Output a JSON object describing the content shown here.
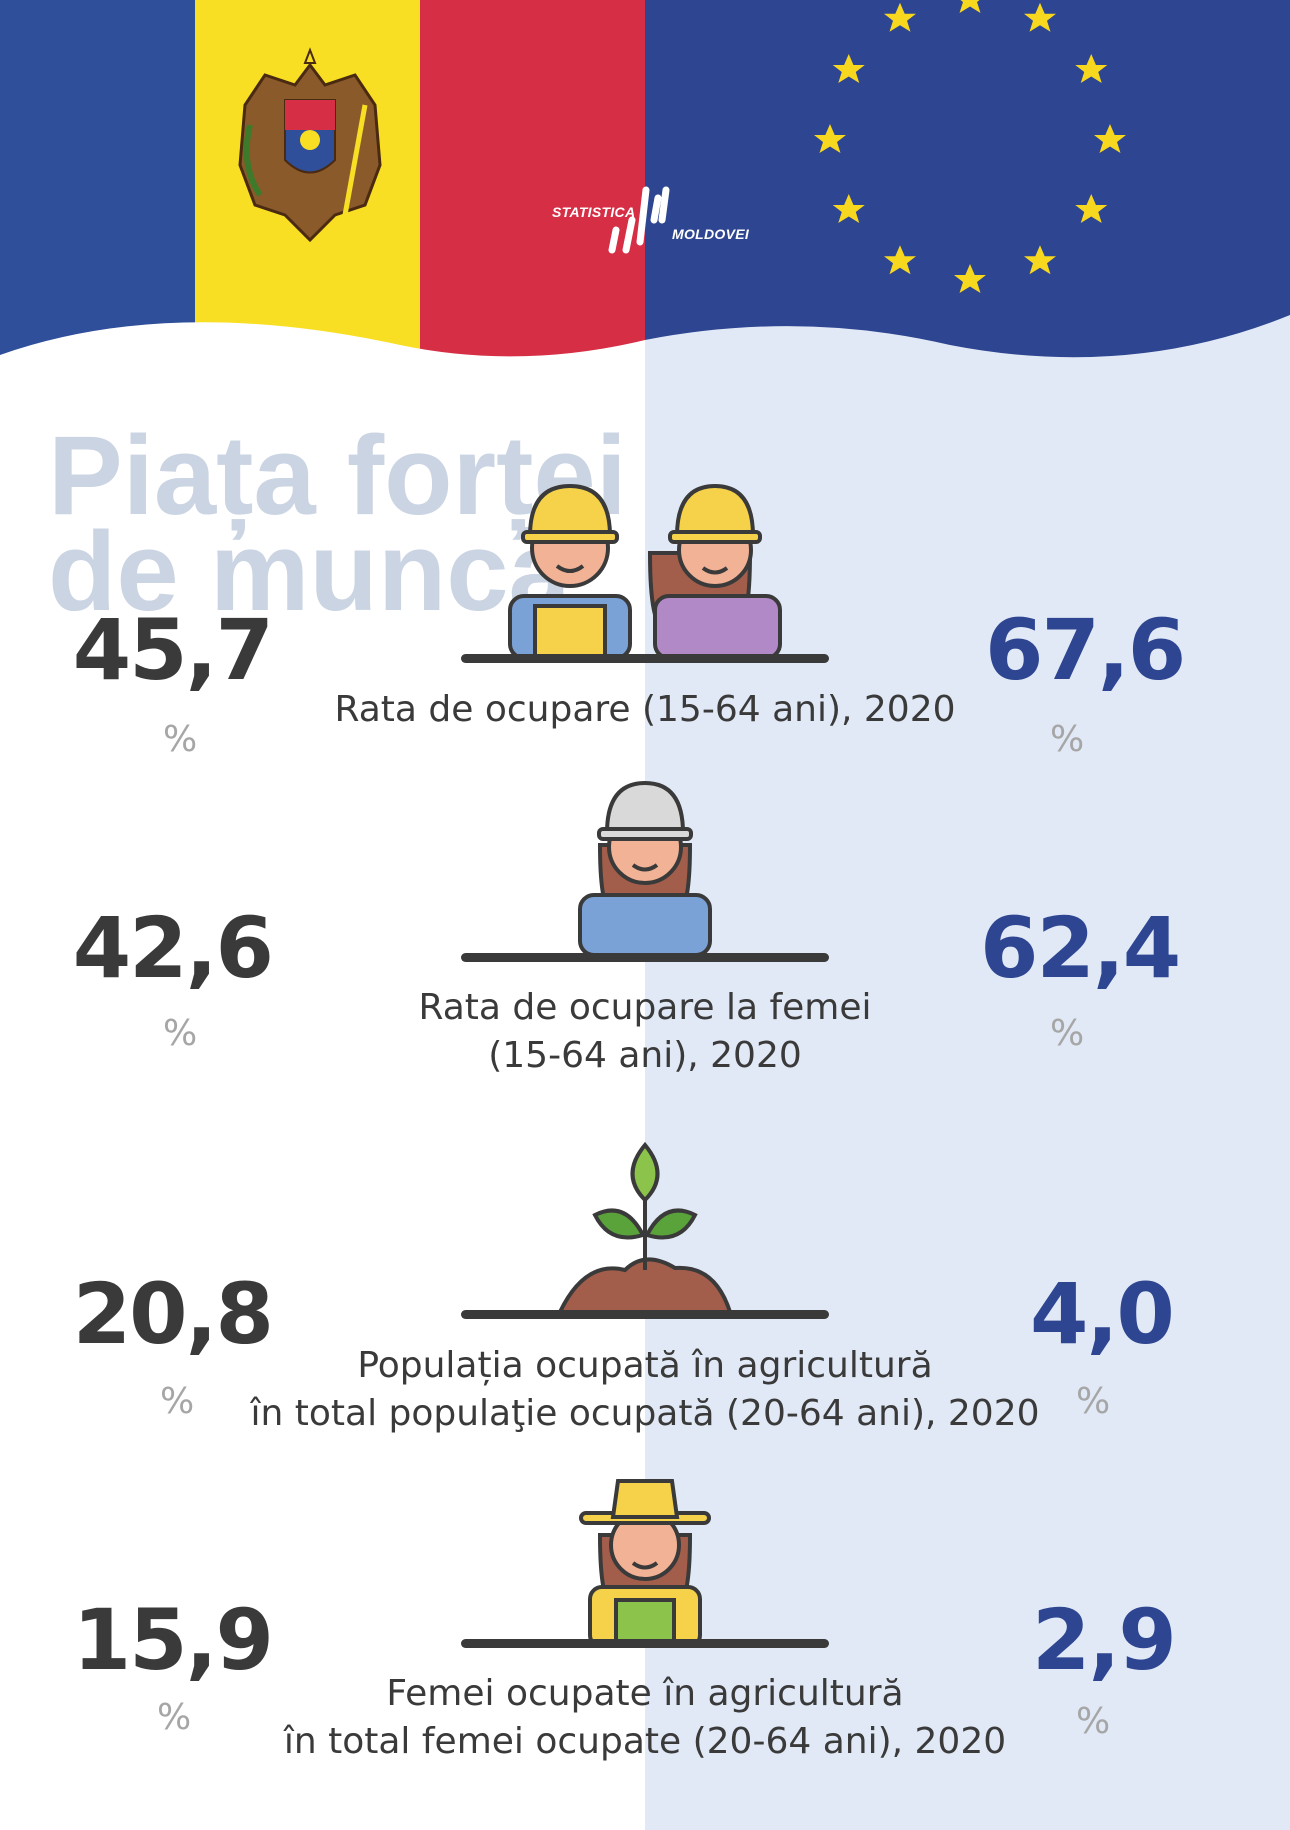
{
  "title": [
    "Piața forței",
    "de muncă"
  ],
  "logo": {
    "line1": "STATISTICA",
    "line2": "MOLDOVEI"
  },
  "colors": {
    "moldova_blue": "#2f4f9a",
    "moldova_yellow": "#f8df23",
    "moldova_red": "#d62e45",
    "eu_blue": "#2e4591",
    "eu_star": "#f8d81e",
    "eu_panel": "#e1e9f6",
    "moldova_value": "#3a3a3a",
    "eu_value": "#2e4591",
    "percent_sign": "#a6a6a6"
  },
  "indicators": [
    {
      "label": [
        "Rata de ocupare (15-64 ani), 2020"
      ],
      "moldova": "45,7",
      "eu": "67,6",
      "unit": "%",
      "icon": "workers-couple-icon"
    },
    {
      "label": [
        "Rata de ocupare la femei",
        "(15-64 ani), 2020"
      ],
      "moldova": "42,6",
      "eu": "62,4",
      "unit": "%",
      "icon": "female-worker-icon"
    },
    {
      "label": [
        "Populația ocupată în agricultură",
        "în total populaţie ocupată (20-64 ani), 2020"
      ],
      "moldova": "20,8",
      "eu": "4,0",
      "unit": "%",
      "icon": "seedling-icon"
    },
    {
      "label": [
        "Femei ocupate în agricultură",
        "în total femei ocupate (20-64 ani), 2020"
      ],
      "moldova": "15,9",
      "eu": "2,9",
      "unit": "%",
      "icon": "female-farmer-icon"
    }
  ]
}
